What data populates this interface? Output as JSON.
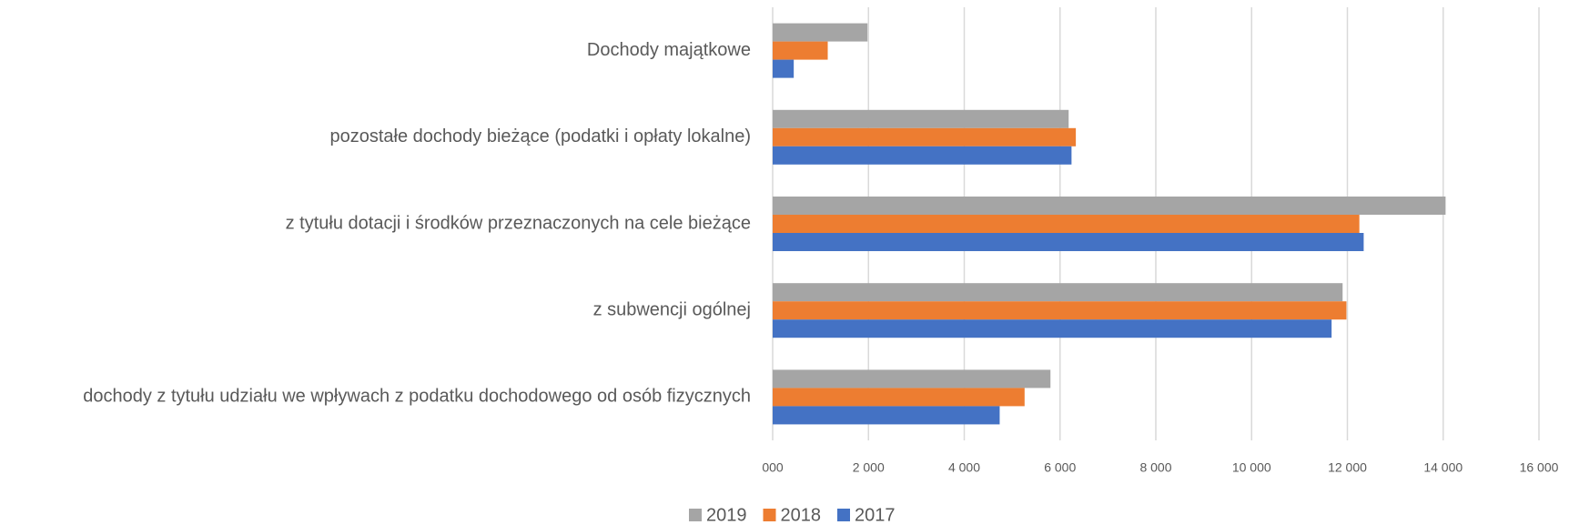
{
  "chart_data": {
    "type": "bar",
    "orientation": "horizontal",
    "categories": [
      "Dochody majątkowe",
      "pozostałe dochody bieżące (podatki i opłaty lokalne)",
      "z tytułu dotacji i środków przeznaczonych na cele bieżące",
      "z subwencji ogólnej",
      "dochody z tytułu udziału we wpływach z podatku dochodowego od osób fizycznych"
    ],
    "series": [
      {
        "name": "2019",
        "color": "#a5a5a5",
        "values": [
          1980,
          6180,
          14050,
          11900,
          5800
        ]
      },
      {
        "name": "2018",
        "color": "#ed7d31",
        "values": [
          1150,
          6330,
          12250,
          11980,
          5260
        ]
      },
      {
        "name": "2017",
        "color": "#4472c4",
        "values": [
          440,
          6240,
          12340,
          11670,
          4740
        ]
      }
    ],
    "xlim": [
      0,
      16000
    ],
    "xticks": [
      {
        "value": 0,
        "label": "000"
      },
      {
        "value": 2000,
        "label": "2 000"
      },
      {
        "value": 4000,
        "label": "4 000"
      },
      {
        "value": 6000,
        "label": "6 000"
      },
      {
        "value": 8000,
        "label": "8 000"
      },
      {
        "value": 10000,
        "label": "10 000"
      },
      {
        "value": 12000,
        "label": "12 000"
      },
      {
        "value": 14000,
        "label": "14 000"
      },
      {
        "value": 16000,
        "label": "16 000"
      }
    ],
    "grid": true,
    "legend": "bottom"
  }
}
